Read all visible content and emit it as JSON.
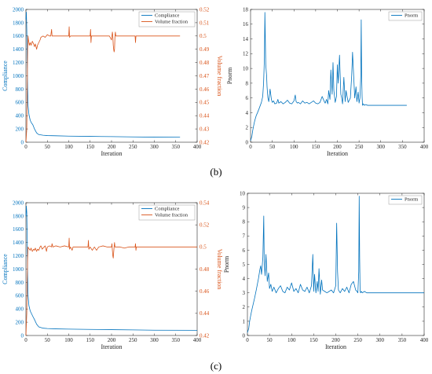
{
  "panel_labels": {
    "b": "(b)",
    "c": "(c)"
  },
  "colors": {
    "compliance": "#0072BD",
    "volume_fraction": "#D95319",
    "pnorm": "#0072BD",
    "axis": "#262626",
    "grid": "#e6e6e6"
  },
  "chart_data": [
    {
      "id": "b_left",
      "type": "line",
      "xlabel": "Iteration",
      "ylabel": "Compliance",
      "ylabel_right": "Volume fraction",
      "xlim": [
        0,
        400
      ],
      "ylim": [
        0,
        2000
      ],
      "ylim_right": [
        0.42,
        0.52
      ],
      "xticks": [
        "0",
        "50",
        "100",
        "150",
        "200",
        "250",
        "300",
        "350",
        "400"
      ],
      "yticks": [
        "0",
        "200",
        "400",
        "600",
        "800",
        "1000",
        "1200",
        "1400",
        "1600",
        "1800",
        "2000"
      ],
      "yticks_right": [
        "0.42",
        "0.43",
        "0.44",
        "0.45",
        "0.46",
        "0.47",
        "0.48",
        "0.49",
        "0.5",
        "0.51",
        "0.52"
      ],
      "legend": "top-right",
      "series": [
        {
          "name": "Compliance",
          "axis": "left",
          "color": "#0072BD",
          "x": [
            0,
            1,
            2,
            3,
            4,
            5,
            7,
            10,
            13,
            16,
            20,
            25,
            30,
            40,
            50,
            70,
            100,
            150,
            200,
            250,
            300,
            360
          ],
          "y": [
            1850,
            1960,
            1700,
            1200,
            800,
            550,
            420,
            330,
            290,
            265,
            200,
            140,
            115,
            105,
            100,
            97,
            92,
            88,
            84,
            80,
            76,
            75
          ]
        },
        {
          "name": "Volume fraction",
          "axis": "right",
          "color": "#D95319",
          "x": [
            0,
            2,
            3,
            4,
            5,
            6,
            8,
            10,
            12,
            15,
            18,
            20,
            22,
            25,
            27,
            30,
            33,
            35,
            40,
            45,
            50,
            55,
            58,
            60,
            61,
            63,
            70,
            80,
            90,
            100,
            101,
            102,
            104,
            110,
            120,
            130,
            140,
            150,
            151,
            152,
            153,
            155,
            160,
            170,
            180,
            190,
            195,
            200,
            201,
            202,
            203,
            204,
            205,
            206,
            207,
            208,
            209,
            210,
            211,
            213,
            220,
            230,
            240,
            250,
            255,
            256,
            257,
            258,
            260,
            300,
            360
          ],
          "y": [
            0.42,
            0.43,
            0.46,
            0.49,
            0.5,
            0.497,
            0.493,
            0.495,
            0.493,
            0.496,
            0.494,
            0.492,
            0.494,
            0.49,
            0.493,
            0.495,
            0.497,
            0.499,
            0.5,
            0.499,
            0.501,
            0.5,
            0.5,
            0.505,
            0.5,
            0.5,
            0.5,
            0.5,
            0.5,
            0.5,
            0.507,
            0.499,
            0.5,
            0.5,
            0.5,
            0.5,
            0.5,
            0.5,
            0.505,
            0.495,
            0.5,
            0.5,
            0.5,
            0.5,
            0.5,
            0.5,
            0.5,
            0.497,
            0.5,
            0.503,
            0.5,
            0.493,
            0.49,
            0.488,
            0.49,
            0.5,
            0.503,
            0.5,
            0.5,
            0.5,
            0.5,
            0.5,
            0.5,
            0.5,
            0.5,
            0.495,
            0.5,
            0.5,
            0.5,
            0.5,
            0.5
          ]
        }
      ]
    },
    {
      "id": "b_right",
      "type": "line",
      "xlabel": "Iteration",
      "ylabel": "Pnorm",
      "xlim": [
        0,
        400
      ],
      "ylim": [
        0,
        18
      ],
      "xticks": [
        "0",
        "50",
        "100",
        "150",
        "200",
        "250",
        "300",
        "350",
        "400"
      ],
      "yticks": [
        "0",
        "2",
        "4",
        "6",
        "8",
        "10",
        "12",
        "14",
        "16",
        "18"
      ],
      "legend": "top-right",
      "series": [
        {
          "name": "Pnorm",
          "color": "#0072BD",
          "x": [
            0,
            3,
            5,
            8,
            10,
            13,
            16,
            20,
            25,
            28,
            30,
            32,
            33,
            35,
            37,
            38,
            40,
            42,
            45,
            48,
            50,
            53,
            56,
            60,
            63,
            65,
            70,
            75,
            80,
            85,
            90,
            95,
            100,
            103,
            105,
            108,
            110,
            115,
            120,
            125,
            130,
            135,
            140,
            145,
            150,
            155,
            160,
            165,
            170,
            172,
            175,
            178,
            180,
            183,
            185,
            188,
            190,
            192,
            195,
            198,
            200,
            202,
            205,
            208,
            210,
            212,
            215,
            218,
            220,
            225,
            230,
            233,
            235,
            238,
            240,
            243,
            245,
            248,
            250,
            252,
            254,
            255,
            256,
            257,
            258,
            260,
            262,
            265,
            270,
            280,
            300,
            330,
            360
          ],
          "y": [
            0.2,
            0.8,
            1.6,
            2.5,
            3.0,
            3.6,
            4.0,
            4.6,
            5.4,
            6.2,
            8.0,
            11.5,
            17.6,
            10.5,
            9.0,
            7.5,
            6.0,
            5.5,
            7.2,
            5.8,
            5.4,
            5.6,
            5.2,
            5.3,
            5.8,
            5.3,
            5.5,
            5.2,
            5.4,
            5.7,
            5.3,
            5.2,
            5.6,
            6.4,
            5.5,
            5.3,
            5.4,
            5.2,
            5.6,
            5.3,
            5.4,
            5.2,
            5.4,
            5.6,
            5.3,
            5.2,
            5.4,
            6.2,
            5.5,
            5.3,
            5.8,
            5.2,
            7.0,
            5.8,
            9.8,
            6.5,
            10.8,
            7.0,
            5.4,
            6.2,
            10.5,
            8.0,
            11.8,
            6.5,
            6.0,
            5.2,
            8.8,
            5.5,
            7.0,
            5.4,
            6.0,
            9.0,
            12.2,
            8.5,
            6.0,
            7.5,
            5.5,
            6.8,
            5.3,
            6.0,
            9.0,
            16.6,
            9.0,
            6.2,
            5.0,
            5.2,
            5.0,
            5.1,
            5.0,
            5.0,
            5.0,
            5.0,
            5.0
          ]
        }
      ]
    },
    {
      "id": "c_left",
      "type": "line",
      "xlabel": "Iteration",
      "ylabel": "Compliance",
      "ylabel_right": "Volume fraction",
      "xlim": [
        0,
        400
      ],
      "ylim": [
        0,
        2000
      ],
      "ylim_right": [
        0.42,
        0.54
      ],
      "xticks": [
        "0",
        "50",
        "100",
        "150",
        "200",
        "250",
        "300",
        "350",
        "400"
      ],
      "yticks": [
        "0",
        "200",
        "400",
        "600",
        "800",
        "1000",
        "1200",
        "1400",
        "1600",
        "1800",
        "2000"
      ],
      "yticks_right": [
        "0.42",
        "0.44",
        "0.46",
        "0.48",
        "0.5",
        "0.52",
        "0.54"
      ],
      "legend": "top-right",
      "series": [
        {
          "name": "Compliance",
          "axis": "left",
          "color": "#0072BD",
          "x": [
            0,
            1,
            2,
            3,
            4,
            5,
            7,
            10,
            13,
            16,
            20,
            25,
            30,
            40,
            50,
            70,
            100,
            150,
            200,
            250,
            300,
            400
          ],
          "y": [
            1800,
            1950,
            1850,
            1400,
            900,
            600,
            450,
            370,
            330,
            290,
            240,
            170,
            130,
            110,
            105,
            100,
            96,
            92,
            88,
            84,
            80,
            78
          ]
        },
        {
          "name": "Volume fraction",
          "axis": "right",
          "color": "#D95319",
          "x": [
            0,
            2,
            3,
            4,
            5,
            6,
            8,
            10,
            12,
            15,
            18,
            20,
            22,
            25,
            27,
            30,
            33,
            35,
            38,
            40,
            45,
            48,
            50,
            55,
            60,
            61,
            63,
            70,
            80,
            90,
            100,
            101,
            102,
            104,
            108,
            110,
            120,
            130,
            140,
            145,
            146,
            147,
            150,
            155,
            160,
            165,
            170,
            180,
            190,
            200,
            201,
            202,
            203,
            204,
            205,
            206,
            207,
            208,
            210,
            220,
            230,
            240,
            250,
            255,
            256,
            257,
            258,
            260,
            270,
            300,
            400
          ],
          "y": [
            0.42,
            0.44,
            0.47,
            0.49,
            0.5,
            0.499,
            0.498,
            0.497,
            0.499,
            0.496,
            0.498,
            0.497,
            0.499,
            0.496,
            0.498,
            0.497,
            0.5,
            0.501,
            0.498,
            0.499,
            0.501,
            0.496,
            0.5,
            0.501,
            0.5,
            0.503,
            0.5,
            0.501,
            0.5,
            0.501,
            0.5,
            0.508,
            0.498,
            0.5,
            0.497,
            0.5,
            0.5,
            0.5,
            0.5,
            0.5,
            0.506,
            0.498,
            0.5,
            0.497,
            0.5,
            0.497,
            0.5,
            0.501,
            0.5,
            0.5,
            0.503,
            0.497,
            0.492,
            0.49,
            0.495,
            0.5,
            0.504,
            0.5,
            0.5,
            0.5,
            0.499,
            0.5,
            0.5,
            0.5,
            0.503,
            0.497,
            0.5,
            0.5,
            0.5,
            0.5,
            0.5
          ]
        }
      ]
    },
    {
      "id": "c_right",
      "type": "line",
      "xlabel": "Iteration",
      "ylabel": "Pnorm",
      "xlim": [
        0,
        400
      ],
      "ylim": [
        0,
        10
      ],
      "xticks": [
        "0",
        "50",
        "100",
        "150",
        "200",
        "250",
        "300",
        "350",
        "400"
      ],
      "yticks": [
        "0",
        "1",
        "2",
        "3",
        "4",
        "5",
        "6",
        "7",
        "8",
        "9",
        "10"
      ],
      "legend": "top-right",
      "series": [
        {
          "name": "Pnorm",
          "color": "#0072BD",
          "x": [
            0,
            3,
            5,
            8,
            10,
            13,
            16,
            20,
            25,
            28,
            30,
            32,
            35,
            37,
            38,
            40,
            42,
            45,
            48,
            50,
            53,
            56,
            60,
            65,
            70,
            75,
            80,
            85,
            90,
            95,
            100,
            105,
            110,
            115,
            120,
            125,
            130,
            135,
            140,
            145,
            148,
            150,
            152,
            155,
            158,
            160,
            162,
            165,
            168,
            170,
            175,
            180,
            185,
            190,
            195,
            198,
            200,
            202,
            204,
            206,
            210,
            215,
            220,
            225,
            230,
            235,
            240,
            245,
            248,
            250,
            252,
            253,
            254,
            255,
            256,
            258,
            260,
            265,
            270,
            280,
            300,
            330,
            360,
            400
          ],
          "y": [
            0.2,
            0.5,
            1.0,
            1.5,
            1.8,
            2.2,
            2.6,
            3.2,
            4.0,
            4.6,
            4.9,
            4.3,
            5.5,
            8.4,
            5.2,
            4.2,
            5.7,
            3.8,
            4.4,
            3.3,
            3.6,
            3.1,
            3.4,
            3.0,
            3.3,
            3.5,
            3.1,
            3.0,
            3.4,
            3.2,
            3.7,
            3.1,
            3.3,
            3.0,
            3.6,
            3.2,
            3.1,
            3.4,
            3.0,
            3.5,
            5.7,
            3.1,
            4.3,
            3.0,
            3.8,
            3.1,
            4.7,
            2.9,
            3.9,
            3.2,
            3.1,
            3.0,
            3.1,
            3.2,
            3.0,
            3.3,
            3.5,
            7.9,
            4.5,
            3.2,
            3.0,
            3.3,
            3.1,
            3.4,
            3.0,
            3.6,
            3.8,
            3.2,
            3.1,
            3.0,
            4.5,
            9.8,
            5.5,
            3.2,
            3.0,
            3.1,
            3.0,
            3.1,
            3.0,
            3.0,
            3.0,
            3.0,
            3.0,
            3.0
          ]
        }
      ]
    }
  ]
}
